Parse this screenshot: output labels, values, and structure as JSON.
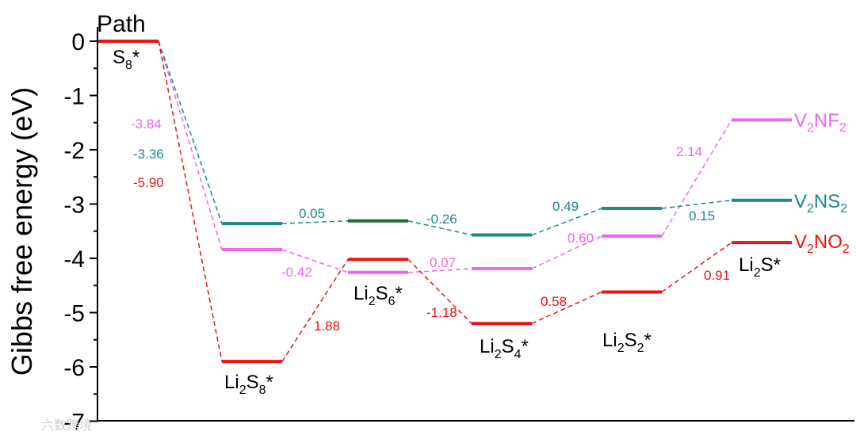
{
  "chart_data": {
    "type": "line",
    "title": "Path",
    "ylabel": "Gibbs free energy (eV)",
    "xlabel": "",
    "ylim": [
      -7,
      0
    ],
    "yticks": [
      "0",
      "-1",
      "-2",
      "-3",
      "-4",
      "-5",
      "-6",
      "-7"
    ],
    "states": [
      {
        "label": "S",
        "sub": "8",
        "suffix": "*"
      },
      {
        "label": "Li",
        "sub": "2",
        "mid": "S",
        "sub2": "8",
        "suffix": "*"
      },
      {
        "label": "Li",
        "sub": "2",
        "mid": "S",
        "sub2": "6",
        "suffix": "*"
      },
      {
        "label": "Li",
        "sub": "2",
        "mid": "S",
        "sub2": "4",
        "suffix": "*"
      },
      {
        "label": "Li",
        "sub": "2",
        "mid": "S",
        "sub2": "2",
        "suffix": "*"
      },
      {
        "label": "Li",
        "sub": "2",
        "mid": "S",
        "sub2": "",
        "suffix": "*"
      }
    ],
    "series": [
      {
        "name": "V2NF2",
        "label_parts": [
          "V",
          "2",
          "NF",
          "2"
        ],
        "color": "#ee66ee",
        "values": [
          0,
          -3.84,
          -4.26,
          -4.19,
          -3.59,
          -1.45
        ],
        "deltas": [
          "-3.84",
          "-0.42",
          "0.07",
          "0.60",
          "2.14"
        ]
      },
      {
        "name": "V2NS2",
        "label_parts": [
          "V",
          "2",
          "NS",
          "2"
        ],
        "color": "#1a8a8a",
        "values": [
          0,
          -3.36,
          -3.31,
          -3.57,
          -3.08,
          -2.93
        ],
        "deltas": [
          "-3.36",
          "0.05",
          "-0.26",
          "0.49",
          "0.15"
        ]
      },
      {
        "name": "V2NO2",
        "label_parts": [
          "V",
          "2",
          "NO",
          "2"
        ],
        "color": "#ee1111",
        "values": [
          0,
          -5.9,
          -4.02,
          -5.2,
          -4.62,
          -3.71
        ],
        "deltas": [
          "-5.90",
          "1.88",
          "-1.18",
          "0.58",
          "0.91"
        ]
      }
    ],
    "watermark": "六数跨境"
  }
}
